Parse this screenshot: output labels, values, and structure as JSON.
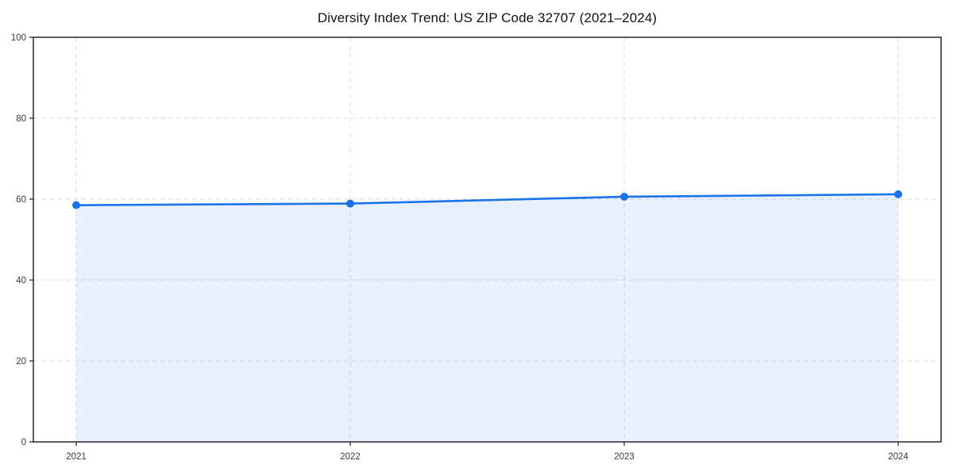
{
  "page": {
    "background": "#ffffff"
  },
  "chart_data": {
    "type": "area",
    "title": "Diversity Index Trend: US ZIP Code 32707 (2021–2024)",
    "categories": [
      "2021",
      "2022",
      "2023",
      "2024"
    ],
    "series": [
      {
        "name": "Diversity Index",
        "values": [
          58.5,
          58.9,
          60.6,
          61.2
        ]
      }
    ],
    "xlabel": "",
    "ylabel": "",
    "ylim": [
      0,
      100
    ],
    "y_ticks": [
      0,
      20,
      40,
      60,
      80,
      100
    ],
    "grid": "on",
    "grid_style": "dashed",
    "legend_position": "none",
    "marker": "circle",
    "colors": {
      "line": "#1a73e8",
      "fill": "#1a73e8",
      "fill_opacity": "0.10",
      "grid": "#dcdcdc",
      "axis_frame": "#1a1a1a",
      "tick_label": "#3a3a3a",
      "title": "#111111"
    }
  }
}
